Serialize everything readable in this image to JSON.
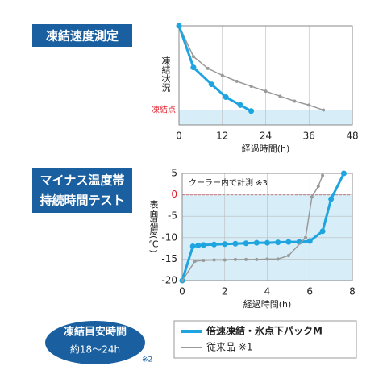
{
  "chart_data": [
    {
      "type": "line",
      "title": "凍結速度測定",
      "ylabel": "凍結状況",
      "xlabel": "経過時間(h)",
      "xlim": [
        0,
        48
      ],
      "xticks": [
        0,
        12,
        24,
        36,
        48
      ],
      "ylim": [
        0,
        100
      ],
      "threshold": {
        "label": "凍結点",
        "value": 15,
        "color": "#e0202a"
      },
      "series": [
        {
          "color": "#9a9a9a",
          "x": [
            0,
            4,
            8,
            12,
            16,
            20,
            24,
            28,
            32,
            36,
            40
          ],
          "values": [
            100,
            69,
            57,
            50,
            44,
            39,
            34,
            29,
            24,
            20,
            15
          ]
        },
        {
          "color": "#1ea4df",
          "x": [
            0,
            4,
            9,
            13,
            17,
            20
          ],
          "values": [
            100,
            58,
            41,
            28,
            20,
            14
          ]
        }
      ]
    },
    {
      "type": "line",
      "title": [
        "マイナス温度帯",
        "持続時間テスト"
      ],
      "ylabel": "表面温度(℃)",
      "xlabel": "経過時間(h)",
      "annotation": "クーラー内で計測 ※3",
      "xlim": [
        0,
        8
      ],
      "xticks": [
        0,
        2,
        4,
        6,
        8
      ],
      "ylim": [
        -20,
        5
      ],
      "yticks": [
        5,
        0,
        -5,
        -10,
        -15,
        -20
      ],
      "threshold": {
        "value": 0,
        "color": "#e0202a"
      },
      "series": [
        {
          "name": "倍速凍結・氷点下パックM",
          "color": "#1ea4df",
          "x": [
            0,
            0.5,
            0.75,
            1,
            1.5,
            2,
            2.5,
            3,
            3.5,
            4,
            4.5,
            5,
            5.5,
            6,
            6.6,
            7,
            7.6
          ],
          "values": [
            -20,
            -12,
            -11.8,
            -11.7,
            -11.6,
            -11.5,
            -11.4,
            -11.3,
            -11.2,
            -11.2,
            -11.1,
            -11,
            -11,
            -10.8,
            -8.5,
            -1,
            5
          ]
        },
        {
          "name": "従来品 ※1",
          "color": "#9a9a9a",
          "x": [
            0,
            0.6,
            1,
            1.5,
            2,
            2.5,
            3,
            3.5,
            4,
            4.5,
            5,
            5.8,
            6.1,
            6.4,
            6.6
          ],
          "values": [
            -20,
            -15.5,
            -15.3,
            -15.2,
            -15.2,
            -15.1,
            -15.1,
            -15.1,
            -15,
            -15,
            -14.2,
            -10,
            -0.5,
            2,
            4.5
          ]
        }
      ]
    }
  ],
  "badge": {
    "title": "凍結目安時間",
    "time": "約18〜24h",
    "note": "※2"
  }
}
